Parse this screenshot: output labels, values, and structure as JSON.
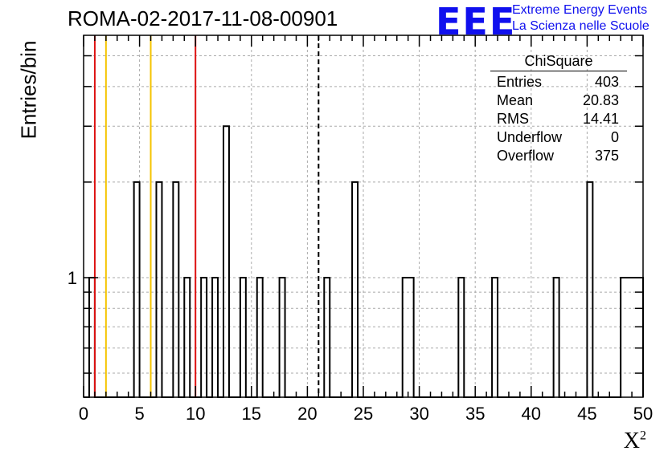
{
  "header": {
    "title": "ROMA-02-2017-11-08-00901",
    "logo_text": "EEE",
    "logo_line1": "Extreme Energy Events",
    "logo_line2": "La Scienza nelle Scuole"
  },
  "colors": {
    "red_line": "#dd1111",
    "yellow_line": "#f5c400",
    "logo_blue": "#1010ee",
    "grid": "#aaaaaa"
  },
  "stats": {
    "name": "ChiSquare",
    "rows": [
      {
        "label": "Entries",
        "value": "403"
      },
      {
        "label": "Mean",
        "value": "20.83"
      },
      {
        "label": "RMS",
        "value": "14.41"
      },
      {
        "label": "Underflow",
        "value": "0"
      },
      {
        "label": "Overflow",
        "value": "375"
      }
    ]
  },
  "chart_data": {
    "type": "bar",
    "title": "ROMA-02-2017-11-08-00901",
    "xlabel": "X",
    "xlabel_superscript": "2",
    "ylabel": "Entries/bin",
    "xlim": [
      0,
      50
    ],
    "ylim": [
      0.42,
      5.8
    ],
    "log_y": true,
    "grid": true,
    "bin_width": 0.5,
    "x_ticks": [
      0,
      5,
      10,
      15,
      20,
      25,
      30,
      35,
      40,
      45,
      50
    ],
    "y_tick_labels": [
      {
        "value": 1,
        "label": "1"
      }
    ],
    "bins": [
      {
        "x": 0.5,
        "count": 1
      },
      {
        "x": 4.5,
        "count": 2
      },
      {
        "x": 6.5,
        "count": 2
      },
      {
        "x": 8.0,
        "count": 2
      },
      {
        "x": 9.0,
        "count": 1
      },
      {
        "x": 10.5,
        "count": 1
      },
      {
        "x": 11.5,
        "count": 1
      },
      {
        "x": 12.5,
        "count": 3
      },
      {
        "x": 14.0,
        "count": 1
      },
      {
        "x": 15.5,
        "count": 1
      },
      {
        "x": 17.5,
        "count": 1
      },
      {
        "x": 21.5,
        "count": 1
      },
      {
        "x": 24.0,
        "count": 2
      },
      {
        "x": 28.5,
        "count": 1
      },
      {
        "x": 29.0,
        "count": 1
      },
      {
        "x": 33.5,
        "count": 1
      },
      {
        "x": 36.5,
        "count": 1
      },
      {
        "x": 42.0,
        "count": 1
      },
      {
        "x": 45.0,
        "count": 2
      },
      {
        "x": 48.0,
        "count": 1
      },
      {
        "x": 48.5,
        "count": 1
      },
      {
        "x": 49.0,
        "count": 1
      },
      {
        "x": 49.5,
        "count": 1
      }
    ],
    "vertical_lines": [
      {
        "x": 1.0,
        "color": "red",
        "style": "solid"
      },
      {
        "x": 2.0,
        "color": "yellow",
        "style": "solid"
      },
      {
        "x": 6.0,
        "color": "yellow",
        "style": "solid"
      },
      {
        "x": 10.0,
        "color": "red",
        "style": "solid"
      },
      {
        "x": 21.0,
        "color": "black",
        "style": "dashed"
      }
    ]
  }
}
